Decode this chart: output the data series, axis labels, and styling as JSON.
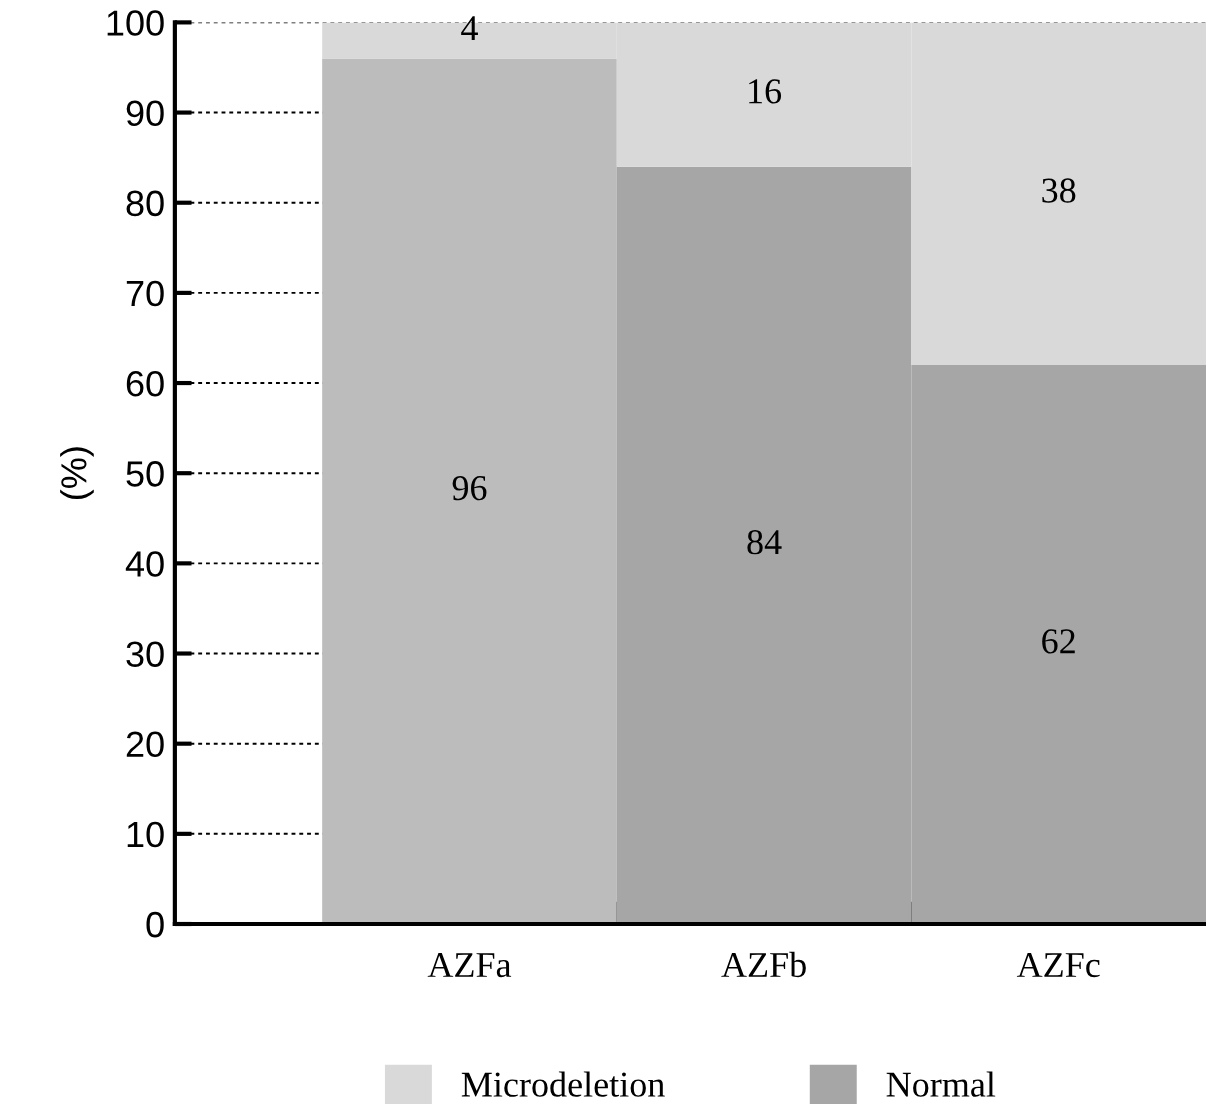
{
  "chart_data": {
    "type": "bar",
    "stacked": true,
    "ylabel": "(%)",
    "categories": [
      "AZFa",
      "AZFb",
      "AZFc"
    ],
    "series": [
      {
        "name": "Normal",
        "color": "#a6a6a6",
        "colors": [
          "#bcbcbc",
          "#a6a6a6",
          "#a6a6a6"
        ],
        "values": [
          96,
          84,
          62
        ]
      },
      {
        "name": "Microdeletion",
        "color": "#d9d9d9",
        "values": [
          4,
          16,
          38
        ]
      }
    ],
    "ylim": [
      0,
      100
    ],
    "yticks": [
      0,
      10,
      20,
      30,
      40,
      50,
      60,
      70,
      80,
      90,
      100
    ],
    "grid": "y",
    "data_labels": true,
    "legend": "bottom"
  }
}
